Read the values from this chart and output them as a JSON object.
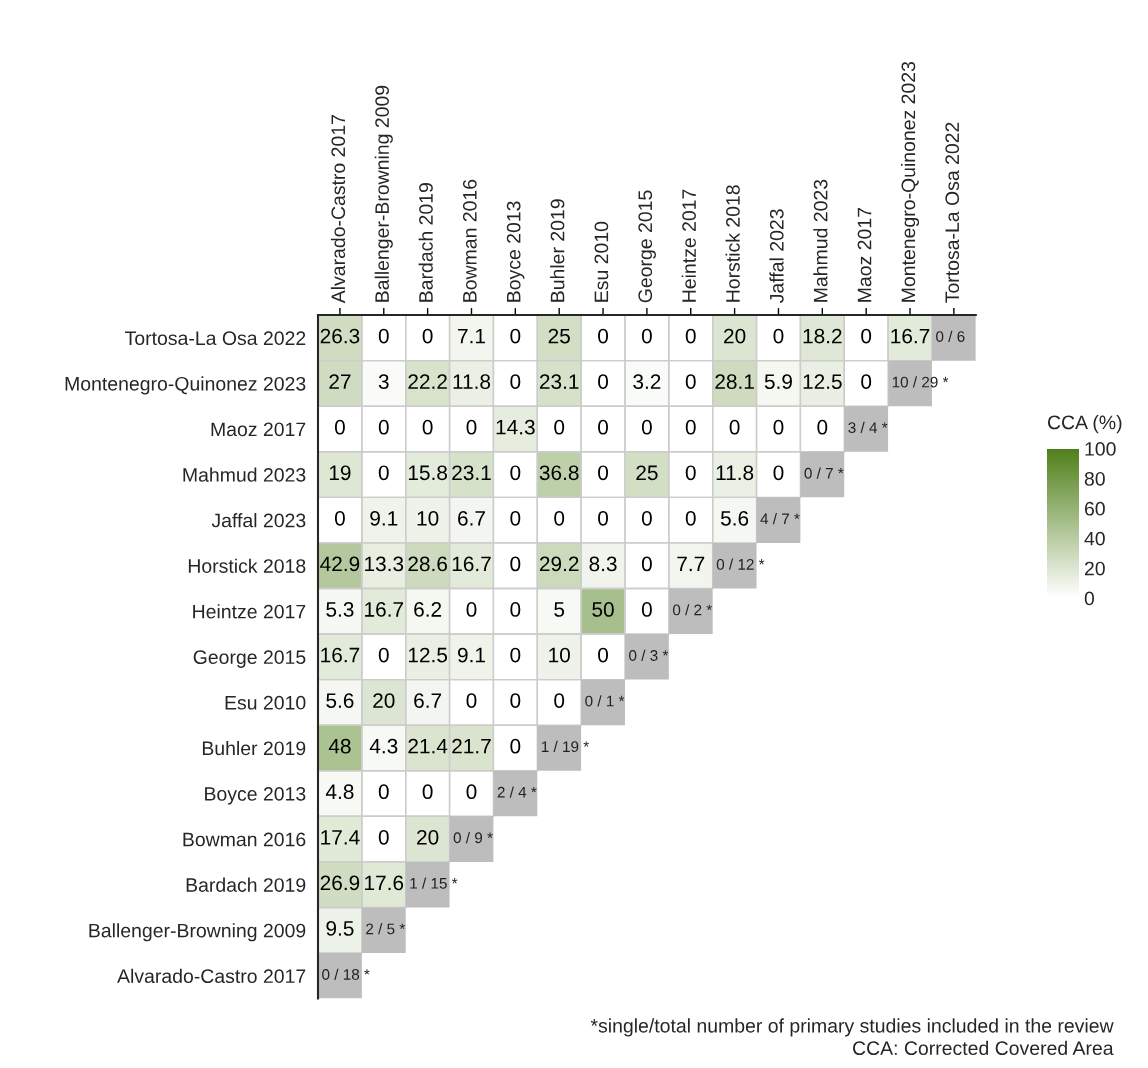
{
  "chart_data": {
    "type": "heatmap",
    "categories": [
      "Alvarado-Castro 2017",
      "Ballenger-Browning 2009",
      "Bardach 2019",
      "Bowman 2016",
      "Boyce 2013",
      "Buhler 2019",
      "Esu 2010",
      "George 2015",
      "Heintze 2017",
      "Horstick 2018",
      "Jaffal 2023",
      "Mahmud 2023",
      "Maoz 2017",
      "Montenegro-Quinonez 2023",
      "Tortosa-La Osa 2022"
    ],
    "y_categories": [
      "Tortosa-La Osa 2022",
      "Montenegro-Quinonez 2023",
      "Maoz 2017",
      "Mahmud 2023",
      "Jaffal 2023",
      "Horstick 2018",
      "Heintze 2017",
      "George 2015",
      "Esu 2010",
      "Buhler 2019",
      "Boyce 2013",
      "Bowman 2016",
      "Bardach 2019",
      "Ballenger-Browning 2009",
      "Alvarado-Castro 2017"
    ],
    "cells": [
      [
        26.3,
        0,
        0,
        7.1,
        0,
        25,
        0,
        0,
        0,
        20,
        0,
        18.2,
        0,
        16.7,
        null
      ],
      [
        27,
        3,
        22.2,
        11.8,
        0,
        23.1,
        0,
        3.2,
        0,
        28.1,
        5.9,
        12.5,
        0,
        null,
        null
      ],
      [
        0,
        0,
        0,
        0,
        14.3,
        0,
        0,
        0,
        0,
        0,
        0,
        0,
        null,
        null,
        null
      ],
      [
        19,
        0,
        15.8,
        23.1,
        0,
        36.8,
        0,
        25,
        0,
        11.8,
        0,
        null,
        null,
        null,
        null
      ],
      [
        0,
        9.1,
        10,
        6.7,
        0,
        0,
        0,
        0,
        0,
        5.6,
        null,
        null,
        null,
        null,
        null
      ],
      [
        42.9,
        13.3,
        28.6,
        16.7,
        0,
        29.2,
        8.3,
        0,
        7.7,
        null,
        null,
        null,
        null,
        null,
        null
      ],
      [
        5.3,
        16.7,
        6.2,
        0,
        0,
        5,
        50,
        0,
        null,
        null,
        null,
        null,
        null,
        null,
        null
      ],
      [
        16.7,
        0,
        12.5,
        9.1,
        0,
        10,
        0,
        null,
        null,
        null,
        null,
        null,
        null,
        null,
        null
      ],
      [
        5.6,
        20,
        6.7,
        0,
        0,
        0,
        null,
        null,
        null,
        null,
        null,
        null,
        null,
        null,
        null
      ],
      [
        48,
        4.3,
        21.4,
        21.7,
        0,
        null,
        null,
        null,
        null,
        null,
        null,
        null,
        null,
        null,
        null
      ],
      [
        4.8,
        0,
        0,
        0,
        null,
        null,
        null,
        null,
        null,
        null,
        null,
        null,
        null,
        null,
        null
      ],
      [
        17.4,
        0,
        20,
        null,
        null,
        null,
        null,
        null,
        null,
        null,
        null,
        null,
        null,
        null,
        null
      ],
      [
        26.9,
        17.6,
        null,
        null,
        null,
        null,
        null,
        null,
        null,
        null,
        null,
        null,
        null,
        null,
        null
      ],
      [
        9.5,
        null,
        null,
        null,
        null,
        null,
        null,
        null,
        null,
        null,
        null,
        null,
        null,
        null,
        null
      ],
      [
        null,
        null,
        null,
        null,
        null,
        null,
        null,
        null,
        null,
        null,
        null,
        null,
        null,
        null,
        null
      ]
    ],
    "cell_labels": [
      [
        "26.3",
        "0",
        "0",
        "7.1",
        "0",
        "25",
        "0",
        "0",
        "0",
        "20",
        "0",
        "18.2",
        "0",
        "16.7",
        "0 / 6"
      ],
      [
        "27",
        "3",
        "22.2",
        "11.8",
        "0",
        "23.1",
        "0",
        "3.2",
        "0",
        "28.1",
        "5.9",
        "12.5",
        "0",
        "10 / 29 *",
        null
      ],
      [
        "0",
        "0",
        "0",
        "0",
        "14.3",
        "0",
        "0",
        "0",
        "0",
        "0",
        "0",
        "0",
        "3 / 4 *",
        null,
        null
      ],
      [
        "19",
        "0",
        "15.8",
        "23.1",
        "0",
        "36.8",
        "0",
        "25",
        "0",
        "11.8",
        "0",
        "0 / 7 *",
        null,
        null,
        null
      ],
      [
        "0",
        "9.1",
        "10",
        "6.7",
        "0",
        "0",
        "0",
        "0",
        "0",
        "5.6",
        "4 / 7 *",
        null,
        null,
        null,
        null
      ],
      [
        "42.9",
        "13.3",
        "28.6",
        "16.7",
        "0",
        "29.2",
        "8.3",
        "0",
        "7.7",
        "0 / 12 *",
        null,
        null,
        null,
        null,
        null
      ],
      [
        "5.3",
        "16.7",
        "6.2",
        "0",
        "0",
        "5",
        "50",
        "0",
        "0 / 2 *",
        null,
        null,
        null,
        null,
        null,
        null
      ],
      [
        "16.7",
        "0",
        "12.5",
        "9.1",
        "0",
        "10",
        "0",
        "0 / 3 *",
        null,
        null,
        null,
        null,
        null,
        null,
        null
      ],
      [
        "5.6",
        "20",
        "6.7",
        "0",
        "0",
        "0",
        "0 / 1 *",
        null,
        null,
        null,
        null,
        null,
        null,
        null,
        null
      ],
      [
        "48",
        "4.3",
        "21.4",
        "21.7",
        "0",
        "1 / 19 *",
        null,
        null,
        null,
        null,
        null,
        null,
        null,
        null,
        null
      ],
      [
        "4.8",
        "0",
        "0",
        "0",
        "2 / 4 *",
        null,
        null,
        null,
        null,
        null,
        null,
        null,
        null,
        null,
        null
      ],
      [
        "17.4",
        "0",
        "20",
        "0 / 9 *",
        null,
        null,
        null,
        null,
        null,
        null,
        null,
        null,
        null,
        null,
        null
      ],
      [
        "26.9",
        "17.6",
        "1 / 15 *",
        null,
        null,
        null,
        null,
        null,
        null,
        null,
        null,
        null,
        null,
        null,
        null
      ],
      [
        "9.5",
        "2 / 5 *",
        null,
        null,
        null,
        null,
        null,
        null,
        null,
        null,
        null,
        null,
        null,
        null,
        null
      ],
      [
        "0 / 18 *",
        null,
        null,
        null,
        null,
        null,
        null,
        null,
        null,
        null,
        null,
        null,
        null,
        null,
        null
      ]
    ],
    "colors": [
      "#ffffff",
      "#4f7f19"
    ],
    "clabel": "CCA (%)",
    "clim": [
      0,
      100
    ],
    "cticks": [
      0,
      20,
      40,
      60,
      80,
      100
    ],
    "annotations": [
      "*single/total number of primary studies included in the review",
      "CCA: Corrected Covered Area"
    ]
  }
}
